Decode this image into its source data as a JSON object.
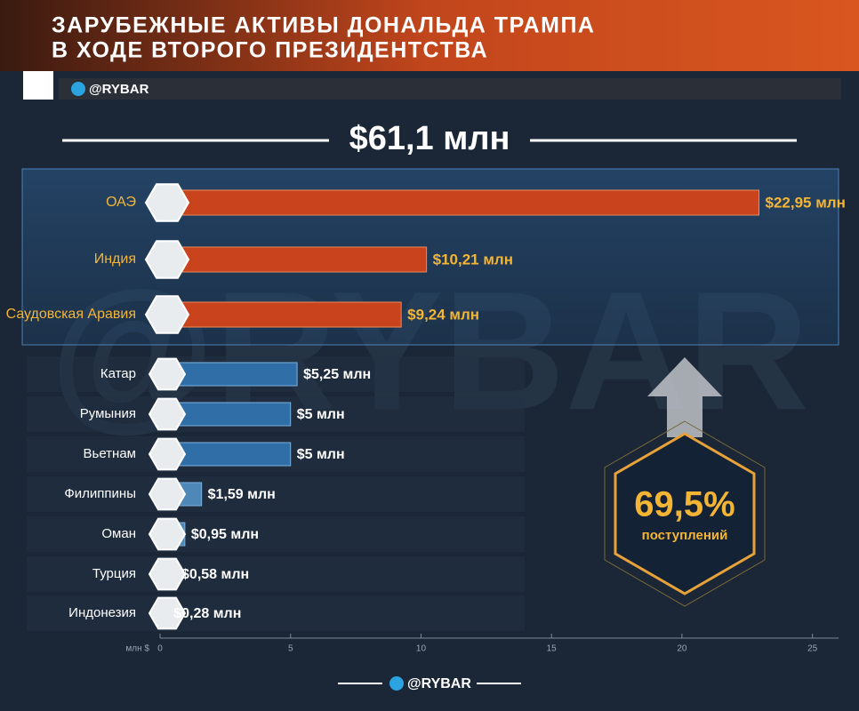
{
  "chart_data": {
    "type": "bar",
    "orientation": "horizontal",
    "title": [
      "ЗАРУБЕЖНЫЕ АКТИВЫ ДОНАЛЬДА ТРАМПА",
      "В ХОДЕ ВТОРОГО ПРЕЗИДЕНТСТВА"
    ],
    "handle": "@RYBAR",
    "watermark": "@RYBAR",
    "total": "$61,1 млн",
    "annotation": {
      "value": "69,5%",
      "text": "поступлений"
    },
    "x_label": "млн $",
    "categories": [
      "ОАЭ",
      "Индия",
      "Саудовская Аравия",
      "Катар",
      "Румыния",
      "Вьетнам",
      "Филиппины",
      "Оман",
      "Турция",
      "Индонезия"
    ],
    "values": [
      22.95,
      10.21,
      9.24,
      5.25,
      5,
      5,
      1.59,
      0.95,
      0.58,
      0.28
    ],
    "value_labels": [
      "$22,95 млн",
      "$10,21 млн",
      "$9,24 млн",
      "$5,25 млн",
      "$5 млн",
      "$5 млн",
      "$1,59 млн",
      "$0,95 млн",
      "$0,58 млн",
      "$0,28 млн"
    ],
    "colors": [
      "#c9431c",
      "#c9431c",
      "#c9431c",
      "#2f6ea6",
      "#2f6ea6",
      "#2f6ea6",
      "#4d88b8",
      "#4d88b8",
      "#4d88b8",
      "#4d88b8"
    ],
    "xlim": [
      0,
      26
    ],
    "xticks": [
      0,
      5,
      10,
      15,
      20,
      25
    ]
  }
}
